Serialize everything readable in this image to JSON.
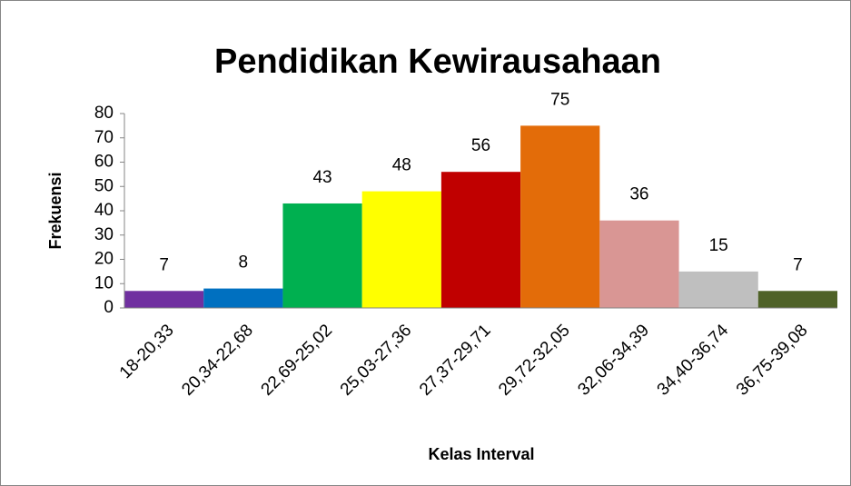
{
  "chart_data": {
    "type": "bar",
    "title": "Pendidikan Kewirausahaan",
    "y_label": "Frekuensi",
    "x_label": "Kelas Interval",
    "categories": [
      "18-20,33",
      "20,34-22,68",
      "22,69-25,02",
      "25,03-27,36",
      "27,37-29,71",
      "29,72-32,05",
      "32,06-34,39",
      "34,40-36,74",
      "36,75-39,08"
    ],
    "values": [
      7,
      8,
      43,
      48,
      56,
      75,
      36,
      15,
      7
    ],
    "colors": [
      "#7030a0",
      "#0070c0",
      "#00b050",
      "#ffff00",
      "#c00000",
      "#e36c09",
      "#d99694",
      "#bfbfbf",
      "#4f6228"
    ],
    "ylim": [
      0,
      80
    ],
    "yticks": [
      0,
      10,
      20,
      30,
      40,
      50,
      60,
      70,
      80
    ],
    "grid": false
  }
}
